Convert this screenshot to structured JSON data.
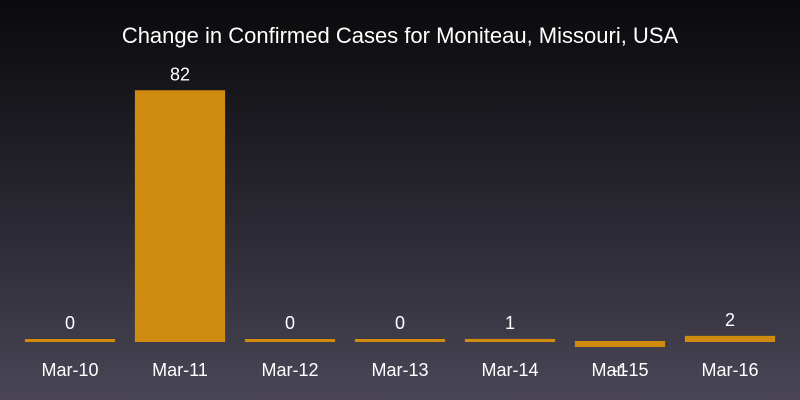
{
  "chart_data": {
    "type": "bar",
    "title": "Change in Confirmed Cases for Moniteau, Missouri, USA",
    "xlabel": "",
    "ylabel": "",
    "categories": [
      "Mar-10",
      "Mar-11",
      "Mar-12",
      "Mar-13",
      "Mar-14",
      "Mar-15",
      "Mar-16"
    ],
    "values": [
      0,
      82,
      0,
      0,
      1,
      -1,
      2
    ],
    "ylim": [
      -1,
      82
    ],
    "grid": false,
    "bar_color": "#d08c10",
    "background_top": "#0a0a0c",
    "background_bottom": "#4a4656"
  }
}
